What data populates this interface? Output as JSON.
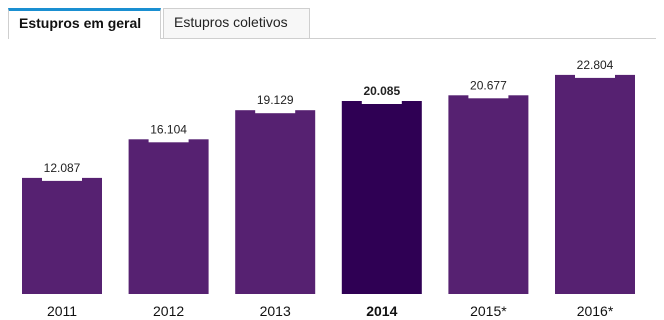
{
  "tabs": [
    {
      "label": "Estupros em geral",
      "active": true
    },
    {
      "label": "Estupros coletivos",
      "active": false
    }
  ],
  "colors": {
    "bar": "#562171",
    "highlight": "#2f0054",
    "tab_accent": "#1a8fd1"
  },
  "chart_data": {
    "type": "bar",
    "categories": [
      "2011",
      "2012",
      "2013",
      "2014",
      "2015*",
      "2016*"
    ],
    "values": [
      12087,
      16104,
      19129,
      20085,
      20677,
      22804
    ],
    "value_labels": [
      "12.087",
      "16.104",
      "19.129",
      "20.085",
      "20.677",
      "22.804"
    ],
    "highlight_index": 3,
    "ylim": [
      0,
      23000
    ],
    "grid": false,
    "title": "",
    "xlabel": "",
    "ylabel": ""
  }
}
